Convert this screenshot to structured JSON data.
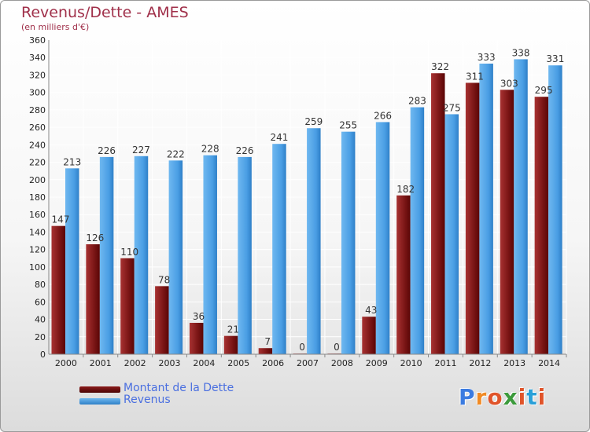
{
  "title": "Revenus/Dette - AMES",
  "subtitle": "(en milliers d'€)",
  "logo": {
    "text": "Proxiti",
    "letter_colors": [
      "#3b7be0",
      "#f08a24",
      "#e0542a",
      "#3b9a3b",
      "#e0542a",
      "#2aa0d8",
      "#e0542a"
    ]
  },
  "colors": {
    "dette": "#8b1a1a",
    "dette_dark": "#5a0a0a",
    "revenus": "#5aa8e8",
    "revenus_dark": "#2f80c8",
    "axis_text": "#222222",
    "grid": "#ffffff"
  },
  "chart_data": {
    "type": "bar",
    "categories": [
      "2000",
      "2001",
      "2002",
      "2003",
      "2004",
      "2005",
      "2006",
      "2007",
      "2008",
      "2009",
      "2010",
      "2011",
      "2012",
      "2013",
      "2014"
    ],
    "series": [
      {
        "name": "Montant de la Dette",
        "values": [
          147,
          126,
          110,
          78,
          36,
          21,
          7,
          0,
          0,
          43,
          182,
          322,
          311,
          303,
          295
        ]
      },
      {
        "name": "Revenus",
        "values": [
          213,
          226,
          227,
          222,
          228,
          226,
          241,
          259,
          255,
          266,
          283,
          275,
          333,
          338,
          331
        ]
      }
    ],
    "ylim": [
      0,
      360
    ],
    "yticks": [
      0,
      20,
      40,
      60,
      80,
      100,
      120,
      140,
      160,
      180,
      200,
      220,
      240,
      260,
      280,
      300,
      320,
      340,
      360
    ],
    "grid": true,
    "legend": "bottom-left"
  }
}
